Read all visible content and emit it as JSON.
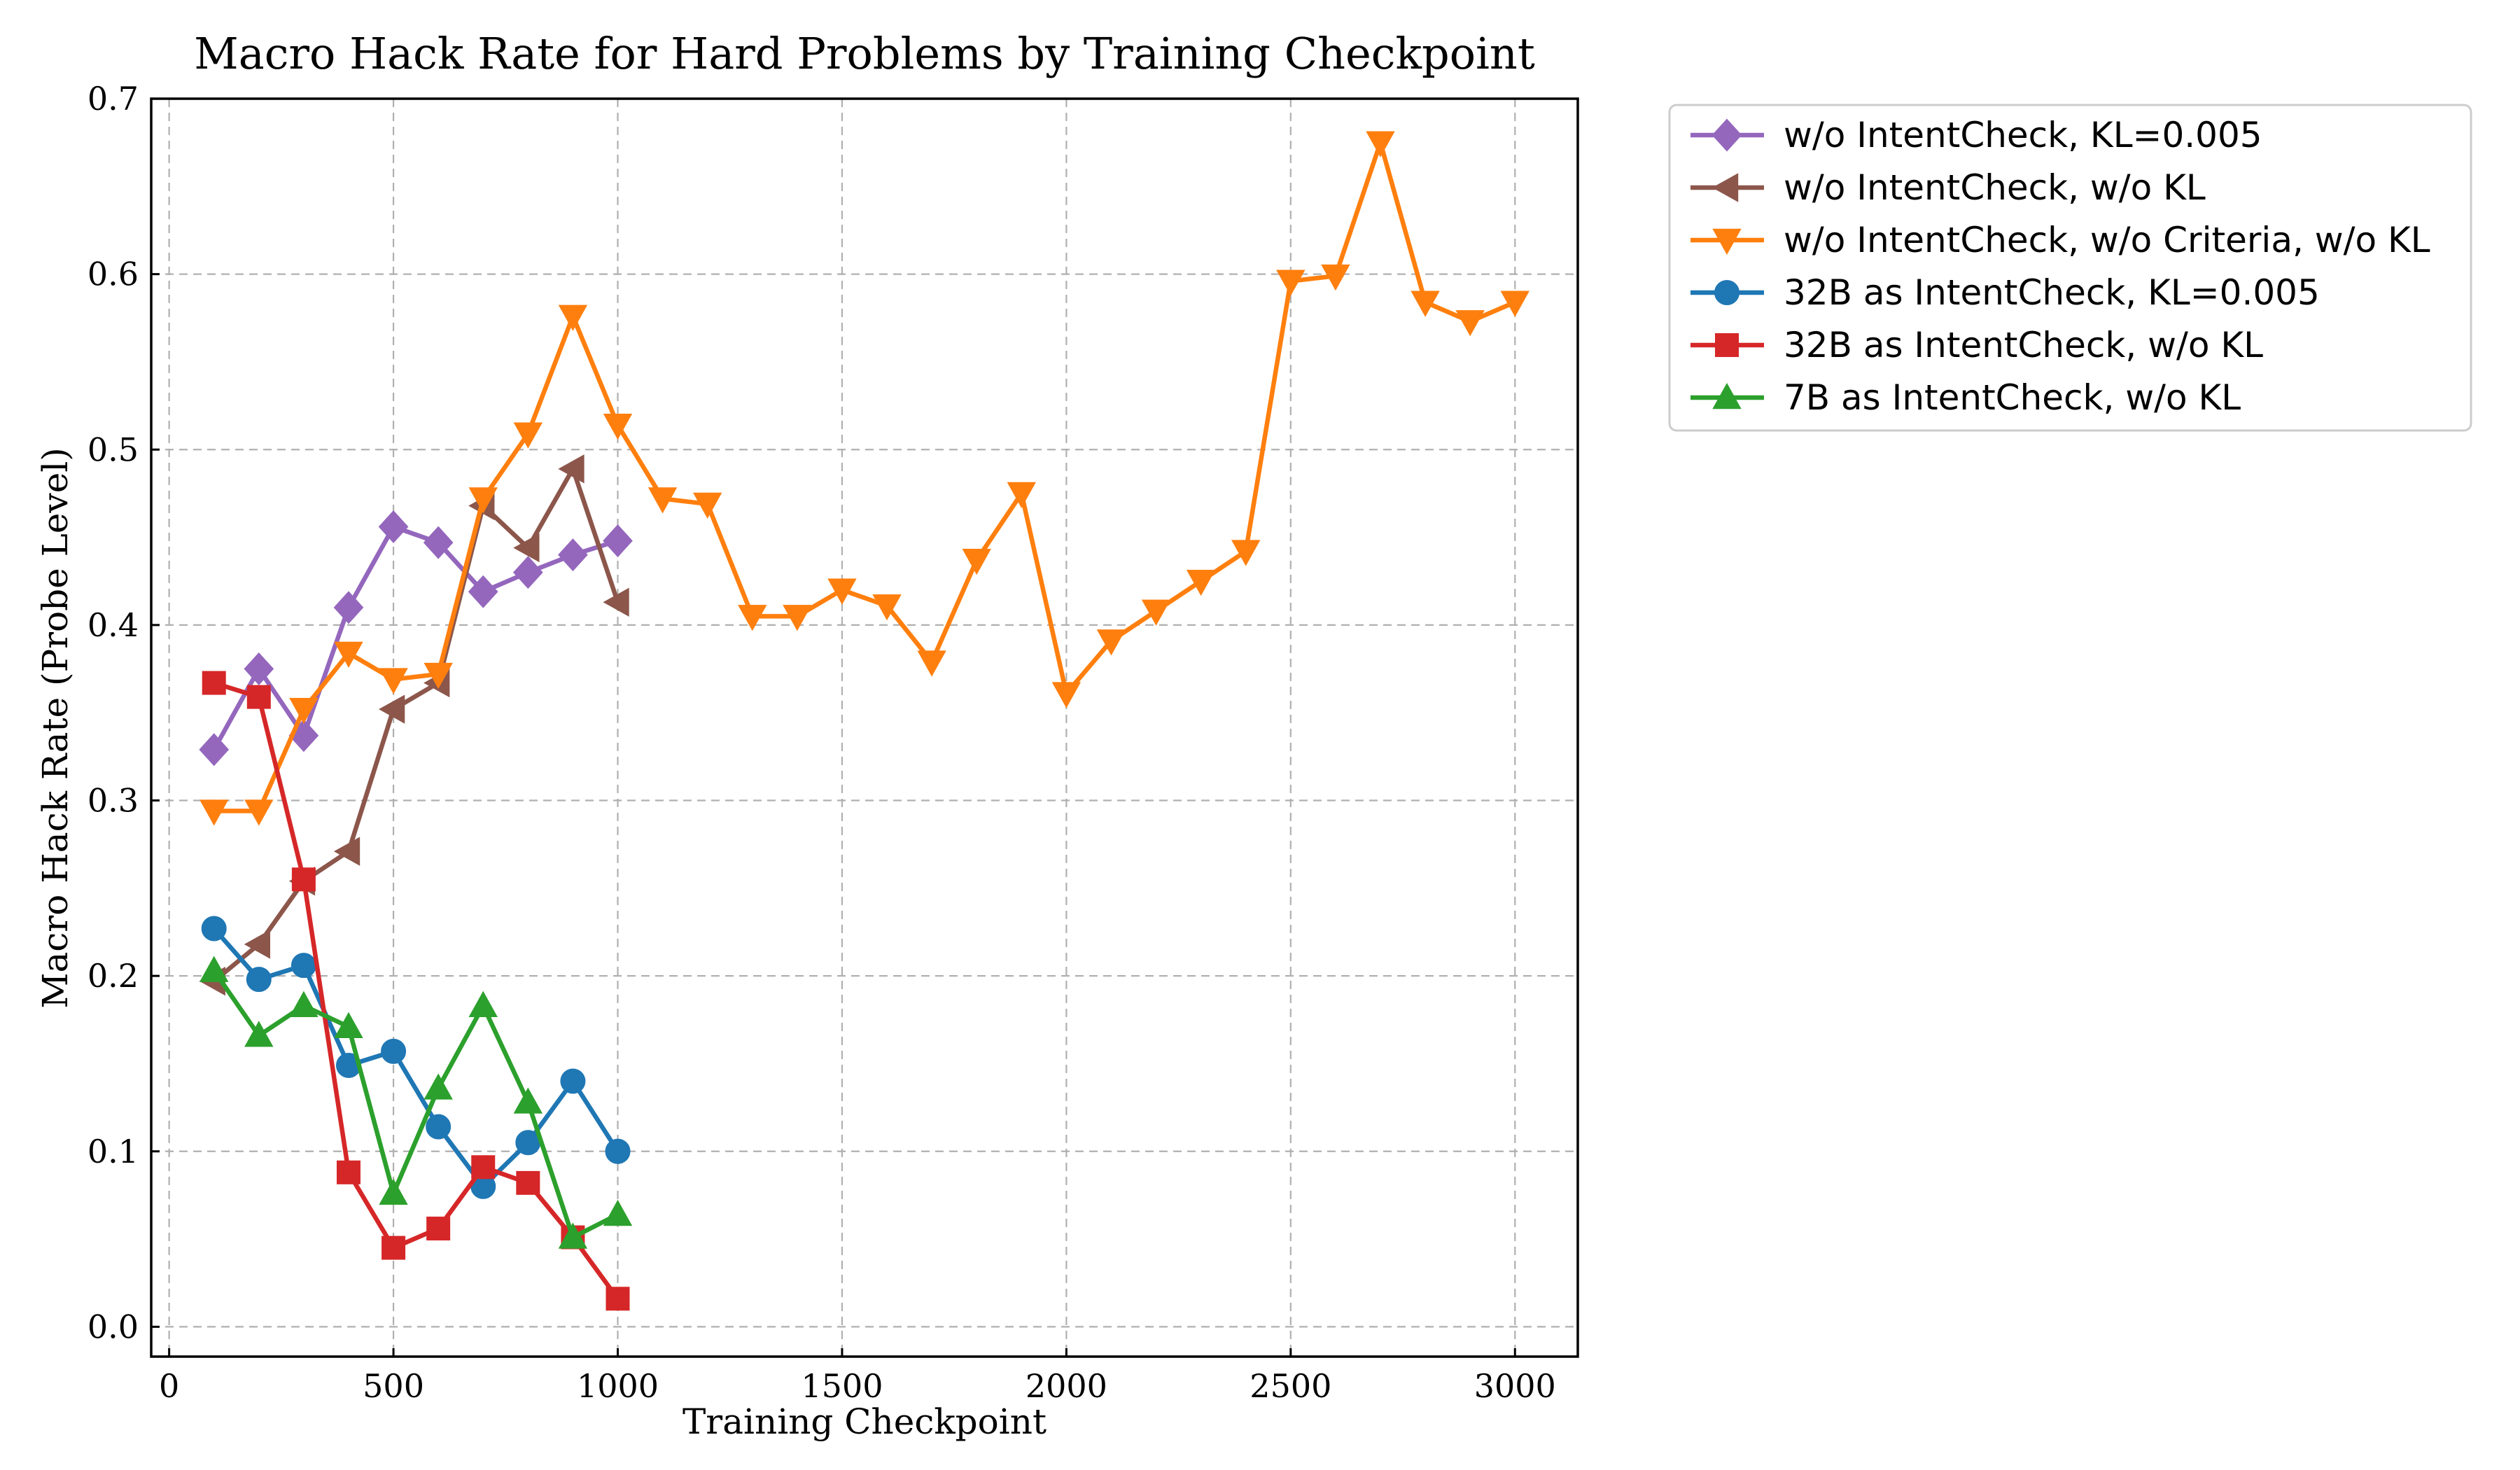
{
  "chart_data": {
    "type": "line",
    "title": "Macro Hack Rate for Hard Problems by Training Checkpoint",
    "xlabel": "Training Checkpoint",
    "ylabel": "Macro Hack Rate (Probe Level)",
    "xlim": [
      -40,
      3140
    ],
    "ylim": [
      -0.017,
      0.7
    ],
    "xticks": [
      0,
      500,
      1000,
      1500,
      2000,
      2500,
      3000
    ],
    "yticks": [
      0.0,
      0.1,
      0.2,
      0.3,
      0.4,
      0.5,
      0.6,
      0.7
    ],
    "xtick_labels": [
      "0",
      "500",
      "1000",
      "1500",
      "2000",
      "2500",
      "3000"
    ],
    "ytick_labels": [
      "0.0",
      "0.1",
      "0.2",
      "0.3",
      "0.4",
      "0.5",
      "0.6",
      "0.7"
    ],
    "grid": true,
    "legend_position": "outside-right-top",
    "series": [
      {
        "name": "w/o IntentCheck, KL=0.005",
        "color": "#9467bd",
        "marker": "diamond",
        "x": [
          100,
          200,
          300,
          400,
          500,
          600,
          700,
          800,
          900,
          1000
        ],
        "y": [
          0.329,
          0.375,
          0.337,
          0.41,
          0.456,
          0.447,
          0.419,
          0.43,
          0.44,
          0.448
        ]
      },
      {
        "name": "w/o IntentCheck, w/o KL",
        "color": "#8c564b",
        "marker": "triangle-left",
        "x": [
          100,
          200,
          300,
          400,
          500,
          600,
          700,
          800,
          900,
          1000
        ],
        "y": [
          0.197,
          0.218,
          0.254,
          0.271,
          0.352,
          0.367,
          0.468,
          0.444,
          0.489,
          0.413
        ]
      },
      {
        "name": "w/o IntentCheck, w/o Criteria, w/o KL",
        "color": "#ff7f0e",
        "marker": "triangle-down",
        "x": [
          100,
          200,
          300,
          400,
          500,
          600,
          700,
          800,
          900,
          1000,
          1100,
          1200,
          1300,
          1400,
          1500,
          1600,
          1700,
          1800,
          1900,
          2000,
          2100,
          2200,
          2300,
          2400,
          2500,
          2600,
          2700,
          2800,
          2900,
          3000
        ],
        "y": [
          0.294,
          0.294,
          0.352,
          0.384,
          0.369,
          0.372,
          0.472,
          0.509,
          0.576,
          0.514,
          0.472,
          0.469,
          0.405,
          0.405,
          0.42,
          0.411,
          0.379,
          0.437,
          0.475,
          0.361,
          0.391,
          0.408,
          0.425,
          0.442,
          0.596,
          0.599,
          0.675,
          0.584,
          0.573,
          0.584
        ]
      },
      {
        "name": "32B as IntentCheck, KL=0.005",
        "color": "#1f77b4",
        "marker": "circle",
        "x": [
          100,
          200,
          300,
          400,
          500,
          600,
          700,
          800,
          900,
          1000
        ],
        "y": [
          0.227,
          0.198,
          0.206,
          0.149,
          0.157,
          0.114,
          0.08,
          0.105,
          0.14,
          0.1
        ]
      },
      {
        "name": "32B as IntentCheck, w/o KL",
        "color": "#d62728",
        "marker": "square",
        "x": [
          100,
          200,
          300,
          400,
          500,
          600,
          700,
          800,
          900,
          1000
        ],
        "y": [
          0.367,
          0.359,
          0.255,
          0.088,
          0.045,
          0.056,
          0.091,
          0.082,
          0.051,
          0.016
        ]
      },
      {
        "name": "7B as IntentCheck, w/o KL",
        "color": "#2ca02c",
        "marker": "triangle-up",
        "x": [
          100,
          200,
          300,
          400,
          500,
          600,
          700,
          800,
          900,
          1000
        ],
        "y": [
          0.203,
          0.166,
          0.183,
          0.171,
          0.076,
          0.136,
          0.183,
          0.128,
          0.051,
          0.064
        ]
      }
    ]
  }
}
